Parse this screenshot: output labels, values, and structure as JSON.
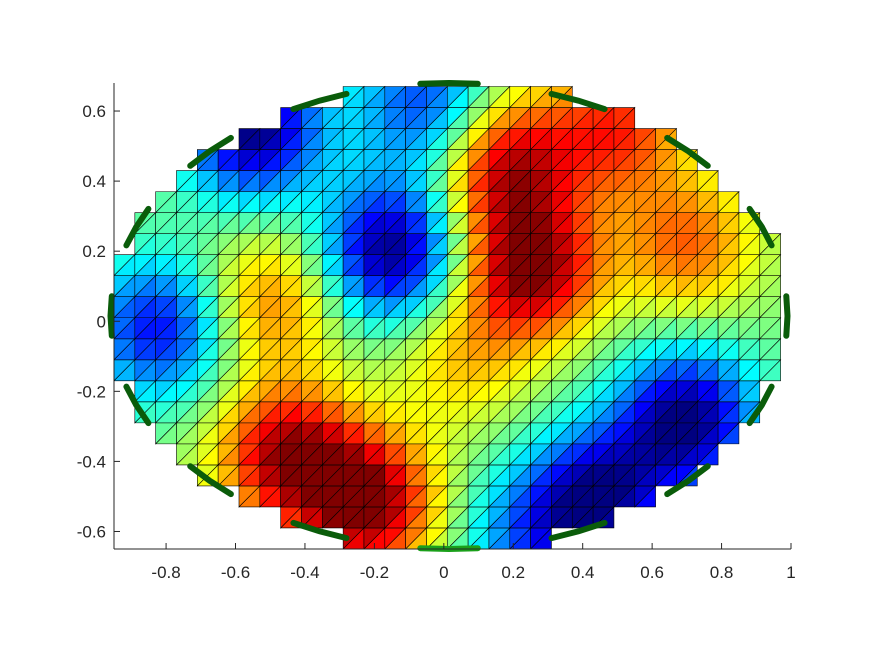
{
  "chart_data": {
    "type": "heatmap",
    "title": "",
    "xlabel": "",
    "ylabel": "",
    "xlim": [
      -0.95,
      1.0
    ],
    "ylim": [
      -0.65,
      0.68
    ],
    "x_ticks": [
      -0.8,
      -0.6,
      -0.4,
      -0.2,
      0,
      0.2,
      0.4,
      0.6,
      0.8,
      1
    ],
    "x_tick_labels": [
      "-0.8",
      "-0.6",
      "-0.4",
      "-0.2",
      "0",
      "0.2",
      "0.4",
      "0.6",
      "0.8",
      "1"
    ],
    "y_ticks": [
      0.6,
      0.4,
      0.2,
      0,
      -0.2,
      -0.4,
      -0.6
    ],
    "y_tick_labels": [
      "0.6",
      "0.4",
      "0.2",
      "0",
      "-0.2",
      "-0.4",
      "-0.6"
    ],
    "grid": false,
    "colormap": "jet",
    "clim": [
      -1,
      1
    ],
    "cell_size": 0.06,
    "mesh": "triangulated square grid with diagonal edges",
    "boundary": {
      "shape": "ellipse",
      "center": [
        0.015,
        0.015
      ],
      "rx": 0.975,
      "ry": 0.665
    },
    "hotspots": [
      {
        "x": -0.22,
        "y": -0.52,
        "value": 1.0
      },
      {
        "x": -0.45,
        "y": -0.38,
        "value": 0.9
      },
      {
        "x": 0.25,
        "y": 0.15,
        "value": 1.0
      },
      {
        "x": 0.18,
        "y": 0.45,
        "value": 0.85
      },
      {
        "x": 0.5,
        "y": 0.55,
        "value": 0.65
      },
      {
        "x": 0.7,
        "y": 0.22,
        "value": 0.55
      },
      {
        "x": -0.5,
        "y": 0.05,
        "value": 0.5
      },
      {
        "x": 0.05,
        "y": -0.1,
        "value": 0.35
      },
      {
        "x": -0.15,
        "y": 0.2,
        "value": -1.0
      },
      {
        "x": 0.7,
        "y": -0.28,
        "value": -1.0
      },
      {
        "x": 0.45,
        "y": -0.5,
        "value": -0.9
      },
      {
        "x": -0.55,
        "y": 0.55,
        "value": -1.0
      },
      {
        "x": -0.82,
        "y": -0.02,
        "value": -0.75
      },
      {
        "x": -0.05,
        "y": 0.62,
        "value": -0.65
      },
      {
        "x": 0.25,
        "y": -0.62,
        "value": -0.5
      }
    ],
    "electrodes": {
      "count": 16,
      "color": "#0a5c0a",
      "active_color": "#1aa01a",
      "active_index": 0,
      "start_angle_deg": 270,
      "direction": "counter-clockwise"
    }
  }
}
